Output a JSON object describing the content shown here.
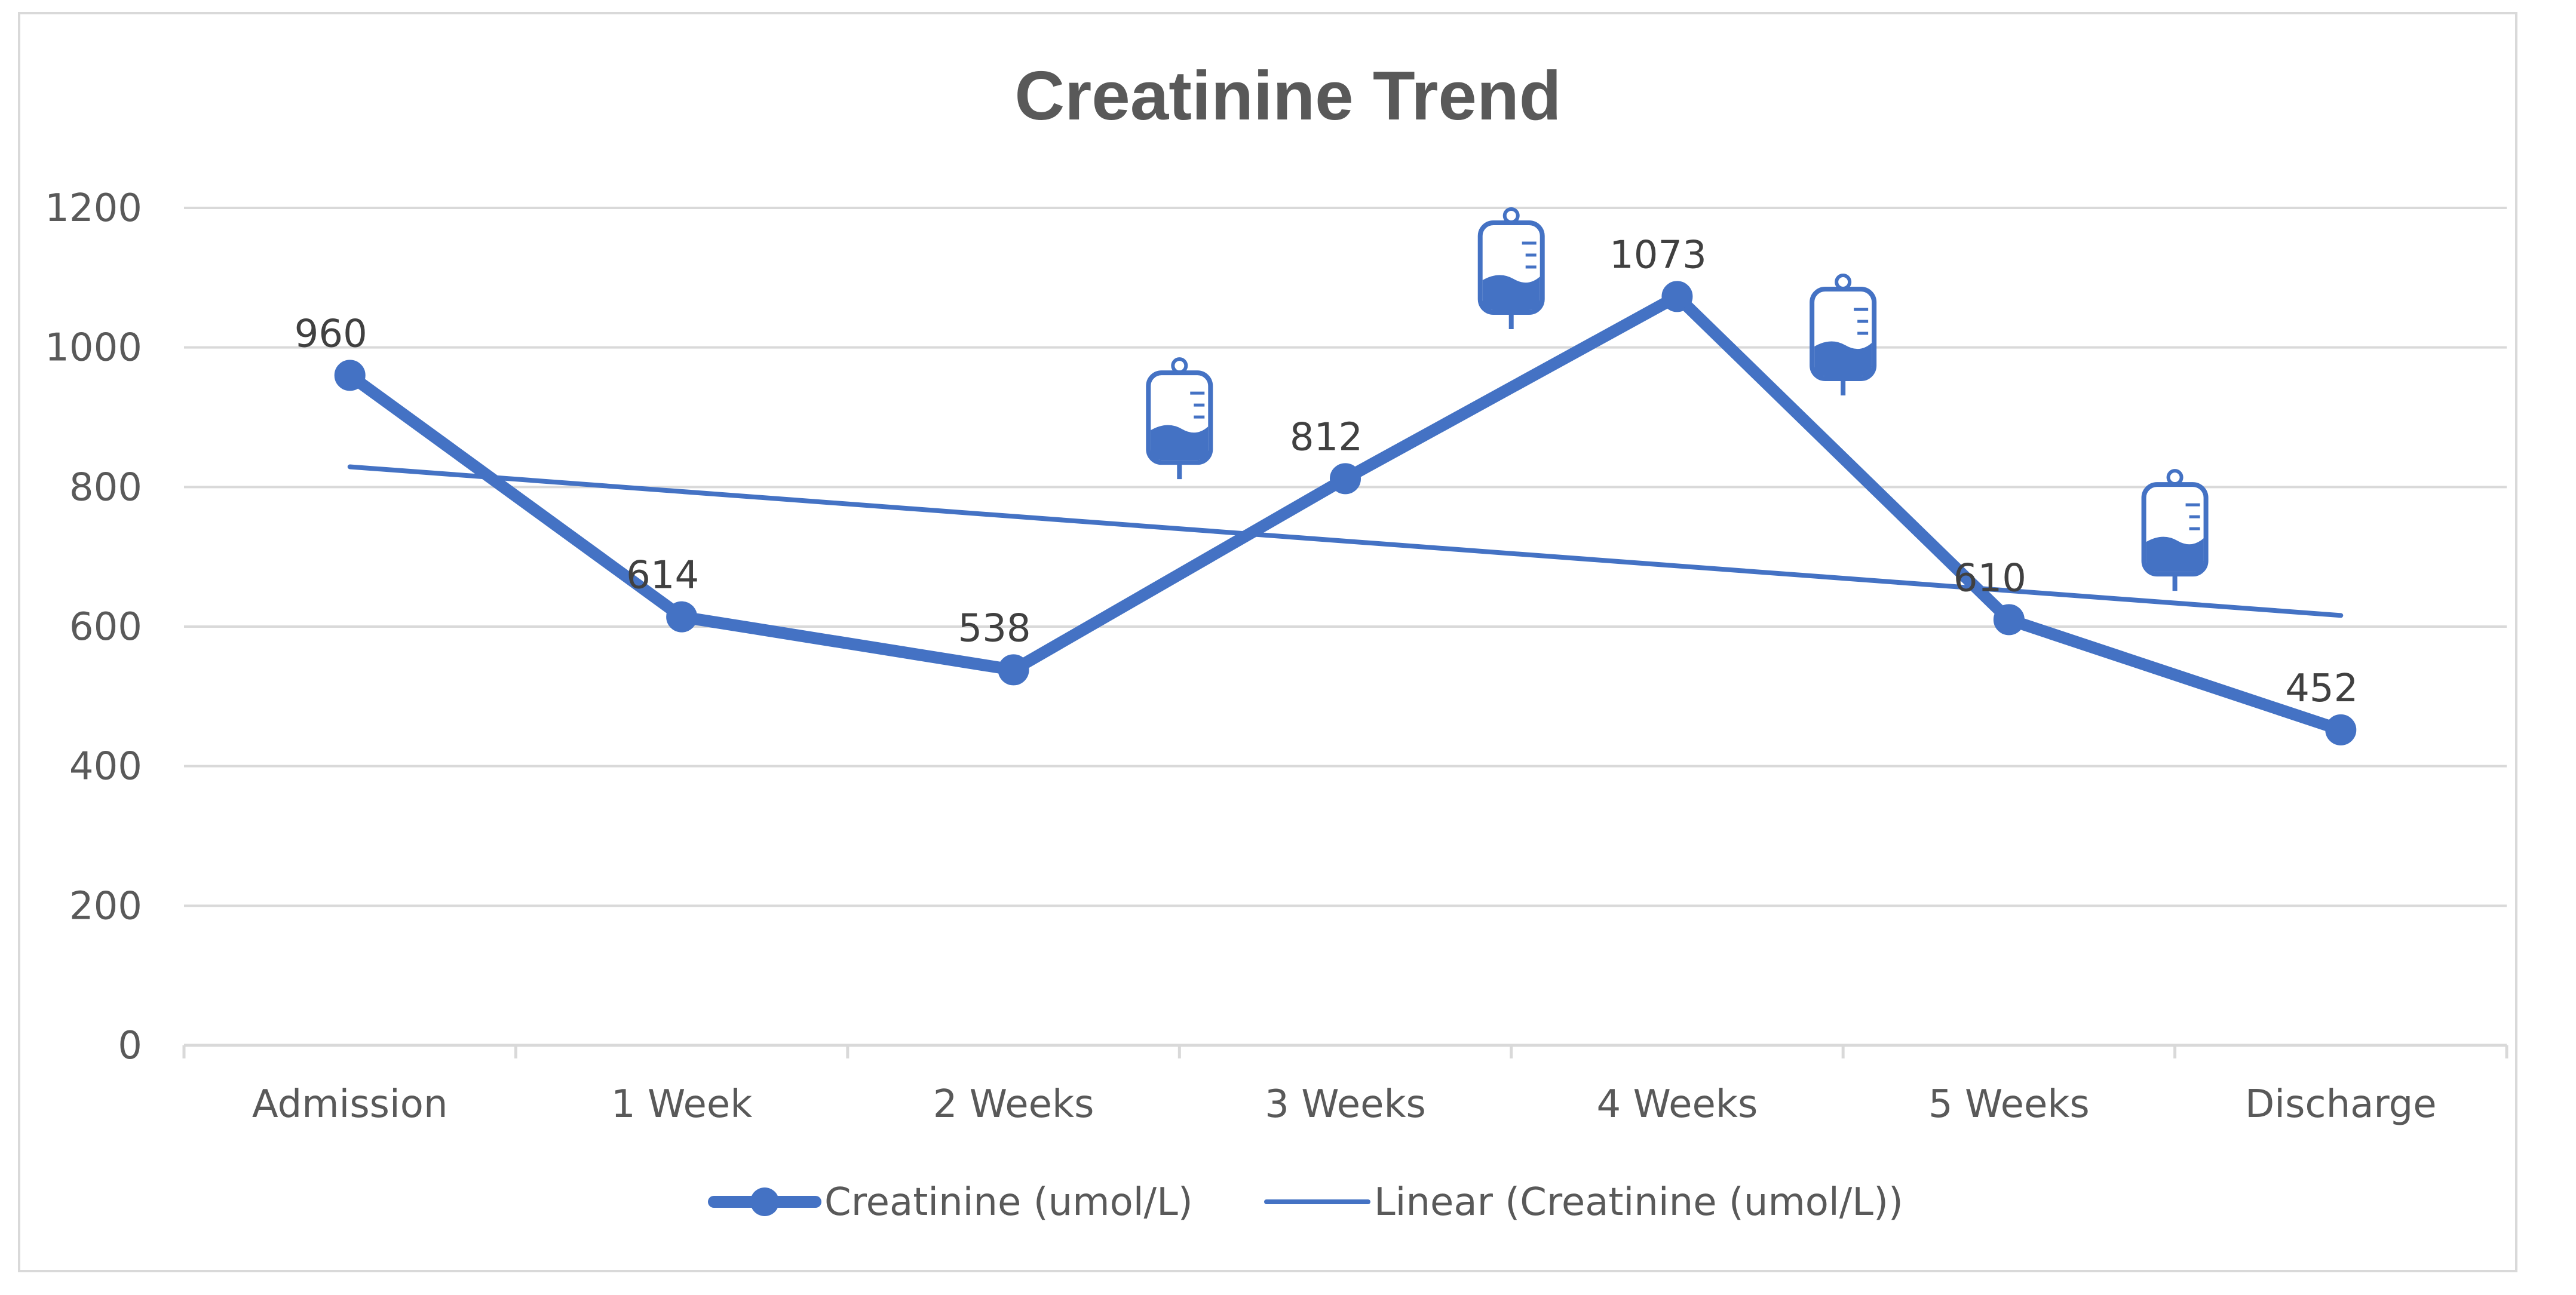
{
  "chart_data": {
    "type": "line",
    "title": "Creatinine Trend",
    "categories": [
      "Admission",
      "1 Week",
      "2 Weeks",
      "3 Weeks",
      "4 Weeks",
      "5 Weeks",
      "Discharge"
    ],
    "series": [
      {
        "name": "Creatinine (umol/L)",
        "values": [
          960,
          614,
          538,
          812,
          1073,
          610,
          452
        ],
        "data_labels": [
          "960",
          "614",
          "538",
          "812",
          "1073",
          "610",
          "452"
        ]
      }
    ],
    "trendline": {
      "name": "Linear (Creatinine (umol/L))",
      "type": "linear",
      "start_value": 829,
      "end_value": 616
    },
    "y_ticks": [
      "0",
      "200",
      "400",
      "600",
      "800",
      "1000",
      "1200"
    ],
    "ylim": [
      0,
      1200
    ],
    "y_step": 200,
    "grid": true,
    "legend_position": "bottom",
    "annotations": [
      {
        "type": "iv-bag-icon",
        "between": [
          "2 Weeks",
          "3 Weeks"
        ],
        "value": 890
      },
      {
        "type": "iv-bag-icon",
        "between": [
          "3 Weeks",
          "4 Weeks"
        ],
        "value": 1105
      },
      {
        "type": "iv-bag-icon",
        "between": [
          "4 Weeks",
          "5 Weeks"
        ],
        "value": 1010
      },
      {
        "type": "iv-bag-icon",
        "between": [
          "5 Weeks",
          "Discharge"
        ],
        "value": 730
      }
    ],
    "colors": {
      "series": "#4472c4",
      "grid": "#d9d9d9",
      "axis": "#d9d9d9",
      "text": "#595959"
    }
  }
}
